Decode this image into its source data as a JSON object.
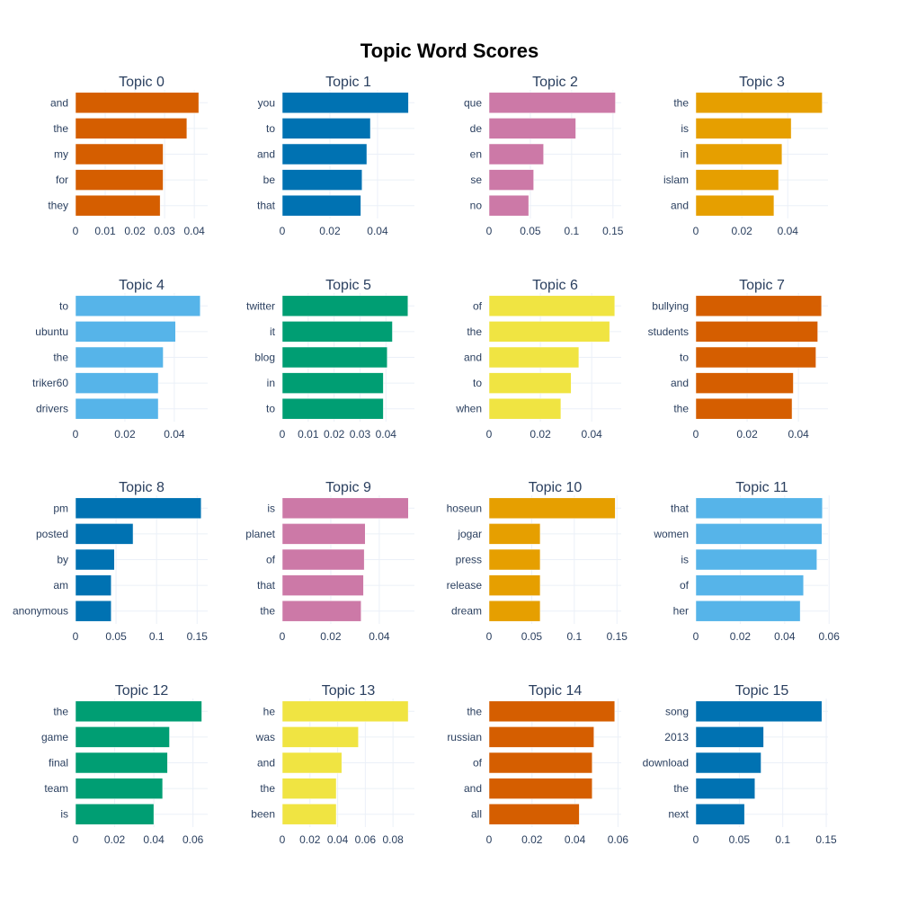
{
  "title": "Topic Word Scores",
  "chart_data": [
    {
      "type": "bar",
      "orientation": "horizontal",
      "title": "Topic 0",
      "color": "#D55E00",
      "categories": [
        "and",
        "the",
        "my",
        "for",
        "they"
      ],
      "values": [
        0.0415,
        0.0375,
        0.0295,
        0.0295,
        0.0285
      ],
      "xlim": [
        0,
        0.0445
      ],
      "xticks": [
        0,
        0.01,
        0.02,
        0.03,
        0.04
      ],
      "xtick_labels": [
        "0",
        "0.01",
        "0.02",
        "0.03",
        "0.04"
      ]
    },
    {
      "type": "bar",
      "orientation": "horizontal",
      "title": "Topic 1",
      "color": "#0072B2",
      "categories": [
        "you",
        "to",
        "and",
        "be",
        "that"
      ],
      "values": [
        0.053,
        0.037,
        0.0355,
        0.0335,
        0.033
      ],
      "xlim": [
        0,
        0.0555
      ],
      "xticks": [
        0,
        0.02,
        0.04
      ],
      "xtick_labels": [
        "0",
        "0.02",
        "0.04"
      ]
    },
    {
      "type": "bar",
      "orientation": "horizontal",
      "title": "Topic 2",
      "color": "#CC79A7",
      "categories": [
        "que",
        "de",
        "en",
        "se",
        "no"
      ],
      "values": [
        0.153,
        0.105,
        0.066,
        0.054,
        0.048
      ],
      "xlim": [
        0,
        0.16
      ],
      "xticks": [
        0,
        0.05,
        0.1,
        0.15
      ],
      "xtick_labels": [
        "0",
        "0.05",
        "0.1",
        "0.15"
      ]
    },
    {
      "type": "bar",
      "orientation": "horizontal",
      "title": "Topic 3",
      "color": "#E69F00",
      "categories": [
        "the",
        "is",
        "in",
        "islam",
        "and"
      ],
      "values": [
        0.055,
        0.0415,
        0.0375,
        0.036,
        0.034
      ],
      "xlim": [
        0,
        0.0575
      ],
      "xticks": [
        0,
        0.02,
        0.04
      ],
      "xtick_labels": [
        "0",
        "0.02",
        "0.04"
      ]
    },
    {
      "type": "bar",
      "orientation": "horizontal",
      "title": "Topic 4",
      "color": "#56B4E9",
      "categories": [
        "to",
        "ubuntu",
        "the",
        "triker60",
        "drivers"
      ],
      "values": [
        0.0505,
        0.0405,
        0.0355,
        0.0335,
        0.0335
      ],
      "xlim": [
        0,
        0.0535
      ],
      "xticks": [
        0,
        0.02,
        0.04
      ],
      "xtick_labels": [
        "0",
        "0.02",
        "0.04"
      ]
    },
    {
      "type": "bar",
      "orientation": "horizontal",
      "title": "Topic 5",
      "color": "#009E73",
      "categories": [
        "twitter",
        "it",
        "blog",
        "in",
        "to"
      ],
      "values": [
        0.0485,
        0.0425,
        0.0405,
        0.039,
        0.039
      ],
      "xlim": [
        0,
        0.051
      ],
      "xticks": [
        0,
        0.01,
        0.02,
        0.03,
        0.04
      ],
      "xtick_labels": [
        "0",
        "0.01",
        "0.02",
        "0.03",
        "0.04"
      ]
    },
    {
      "type": "bar",
      "orientation": "horizontal",
      "title": "Topic 6",
      "color": "#F0E442",
      "categories": [
        "of",
        "the",
        "and",
        "to",
        "when"
      ],
      "values": [
        0.049,
        0.047,
        0.035,
        0.032,
        0.028
      ],
      "xlim": [
        0,
        0.0515
      ],
      "xticks": [
        0,
        0.02,
        0.04
      ],
      "xtick_labels": [
        "0",
        "0.02",
        "0.04"
      ]
    },
    {
      "type": "bar",
      "orientation": "horizontal",
      "title": "Topic 7",
      "color": "#D55E00",
      "categories": [
        "bullying",
        "students",
        "to",
        "and",
        "the"
      ],
      "values": [
        0.049,
        0.0475,
        0.0468,
        0.038,
        0.0375
      ],
      "xlim": [
        0,
        0.0515
      ],
      "xticks": [
        0,
        0.02,
        0.04
      ],
      "xtick_labels": [
        "0",
        "0.02",
        "0.04"
      ]
    },
    {
      "type": "bar",
      "orientation": "horizontal",
      "title": "Topic 8",
      "color": "#0072B2",
      "categories": [
        "pm",
        "posted",
        "by",
        "am",
        "anonymous"
      ],
      "values": [
        0.155,
        0.071,
        0.048,
        0.044,
        0.044
      ],
      "xlim": [
        0,
        0.163
      ],
      "xticks": [
        0,
        0.05,
        0.1,
        0.15
      ],
      "xtick_labels": [
        "0",
        "0.05",
        "0.1",
        "0.15"
      ]
    },
    {
      "type": "bar",
      "orientation": "horizontal",
      "title": "Topic 9",
      "color": "#CC79A7",
      "categories": [
        "is",
        "planet",
        "of",
        "that",
        "the"
      ],
      "values": [
        0.052,
        0.0342,
        0.0338,
        0.0335,
        0.0325
      ],
      "xlim": [
        0,
        0.0545
      ],
      "xticks": [
        0,
        0.02,
        0.04
      ],
      "xtick_labels": [
        "0",
        "0.02",
        "0.04"
      ]
    },
    {
      "type": "bar",
      "orientation": "horizontal",
      "title": "Topic 10",
      "color": "#E69F00",
      "categories": [
        "hoseun",
        "jogar",
        "press",
        "release",
        "dream"
      ],
      "values": [
        0.148,
        0.06,
        0.06,
        0.06,
        0.06
      ],
      "xlim": [
        0,
        0.155
      ],
      "xticks": [
        0,
        0.05,
        0.1,
        0.15
      ],
      "xtick_labels": [
        "0",
        "0.05",
        "0.1",
        "0.15"
      ]
    },
    {
      "type": "bar",
      "orientation": "horizontal",
      "title": "Topic 11",
      "color": "#56B4E9",
      "categories": [
        "that",
        "women",
        "is",
        "of",
        "her"
      ],
      "values": [
        0.057,
        0.0568,
        0.0545,
        0.0485,
        0.047
      ],
      "xlim": [
        0,
        0.0595
      ],
      "xticks": [
        0,
        0.02,
        0.04,
        0.06
      ],
      "xtick_labels": [
        "0",
        "0.02",
        "0.04",
        "0.06"
      ]
    },
    {
      "type": "bar",
      "orientation": "horizontal",
      "title": "Topic 12",
      "color": "#009E73",
      "categories": [
        "the",
        "game",
        "final",
        "team",
        "is"
      ],
      "values": [
        0.0645,
        0.048,
        0.047,
        0.0445,
        0.04
      ],
      "xlim": [
        0,
        0.0675
      ],
      "xticks": [
        0,
        0.02,
        0.04,
        0.06
      ],
      "xtick_labels": [
        "0",
        "0.02",
        "0.04",
        "0.06"
      ]
    },
    {
      "type": "bar",
      "orientation": "horizontal",
      "title": "Topic 13",
      "color": "#F0E442",
      "categories": [
        "he",
        "was",
        "and",
        "the",
        "been"
      ],
      "values": [
        0.091,
        0.055,
        0.043,
        0.039,
        0.039
      ],
      "xlim": [
        0,
        0.0955
      ],
      "xticks": [
        0,
        0.02,
        0.04,
        0.06,
        0.08
      ],
      "xtick_labels": [
        "0",
        "0.02",
        "0.04",
        "0.06",
        "0.08"
      ]
    },
    {
      "type": "bar",
      "orientation": "horizontal",
      "title": "Topic 14",
      "color": "#D55E00",
      "categories": [
        "the",
        "russian",
        "of",
        "and",
        "all"
      ],
      "values": [
        0.0585,
        0.0488,
        0.048,
        0.048,
        0.042
      ],
      "xlim": [
        0,
        0.0615
      ],
      "xticks": [
        0,
        0.02,
        0.04,
        0.06
      ],
      "xtick_labels": [
        "0",
        "0.02",
        "0.04",
        "0.06"
      ]
    },
    {
      "type": "bar",
      "orientation": "horizontal",
      "title": "Topic 15",
      "color": "#0072B2",
      "categories": [
        "song",
        "2013",
        "download",
        "the",
        "next"
      ],
      "values": [
        0.145,
        0.078,
        0.075,
        0.068,
        0.056
      ],
      "xlim": [
        0,
        0.152
      ],
      "xticks": [
        0,
        0.05,
        0.1,
        0.15
      ],
      "xtick_labels": [
        "0",
        "0.05",
        "0.1",
        "0.15"
      ]
    }
  ]
}
